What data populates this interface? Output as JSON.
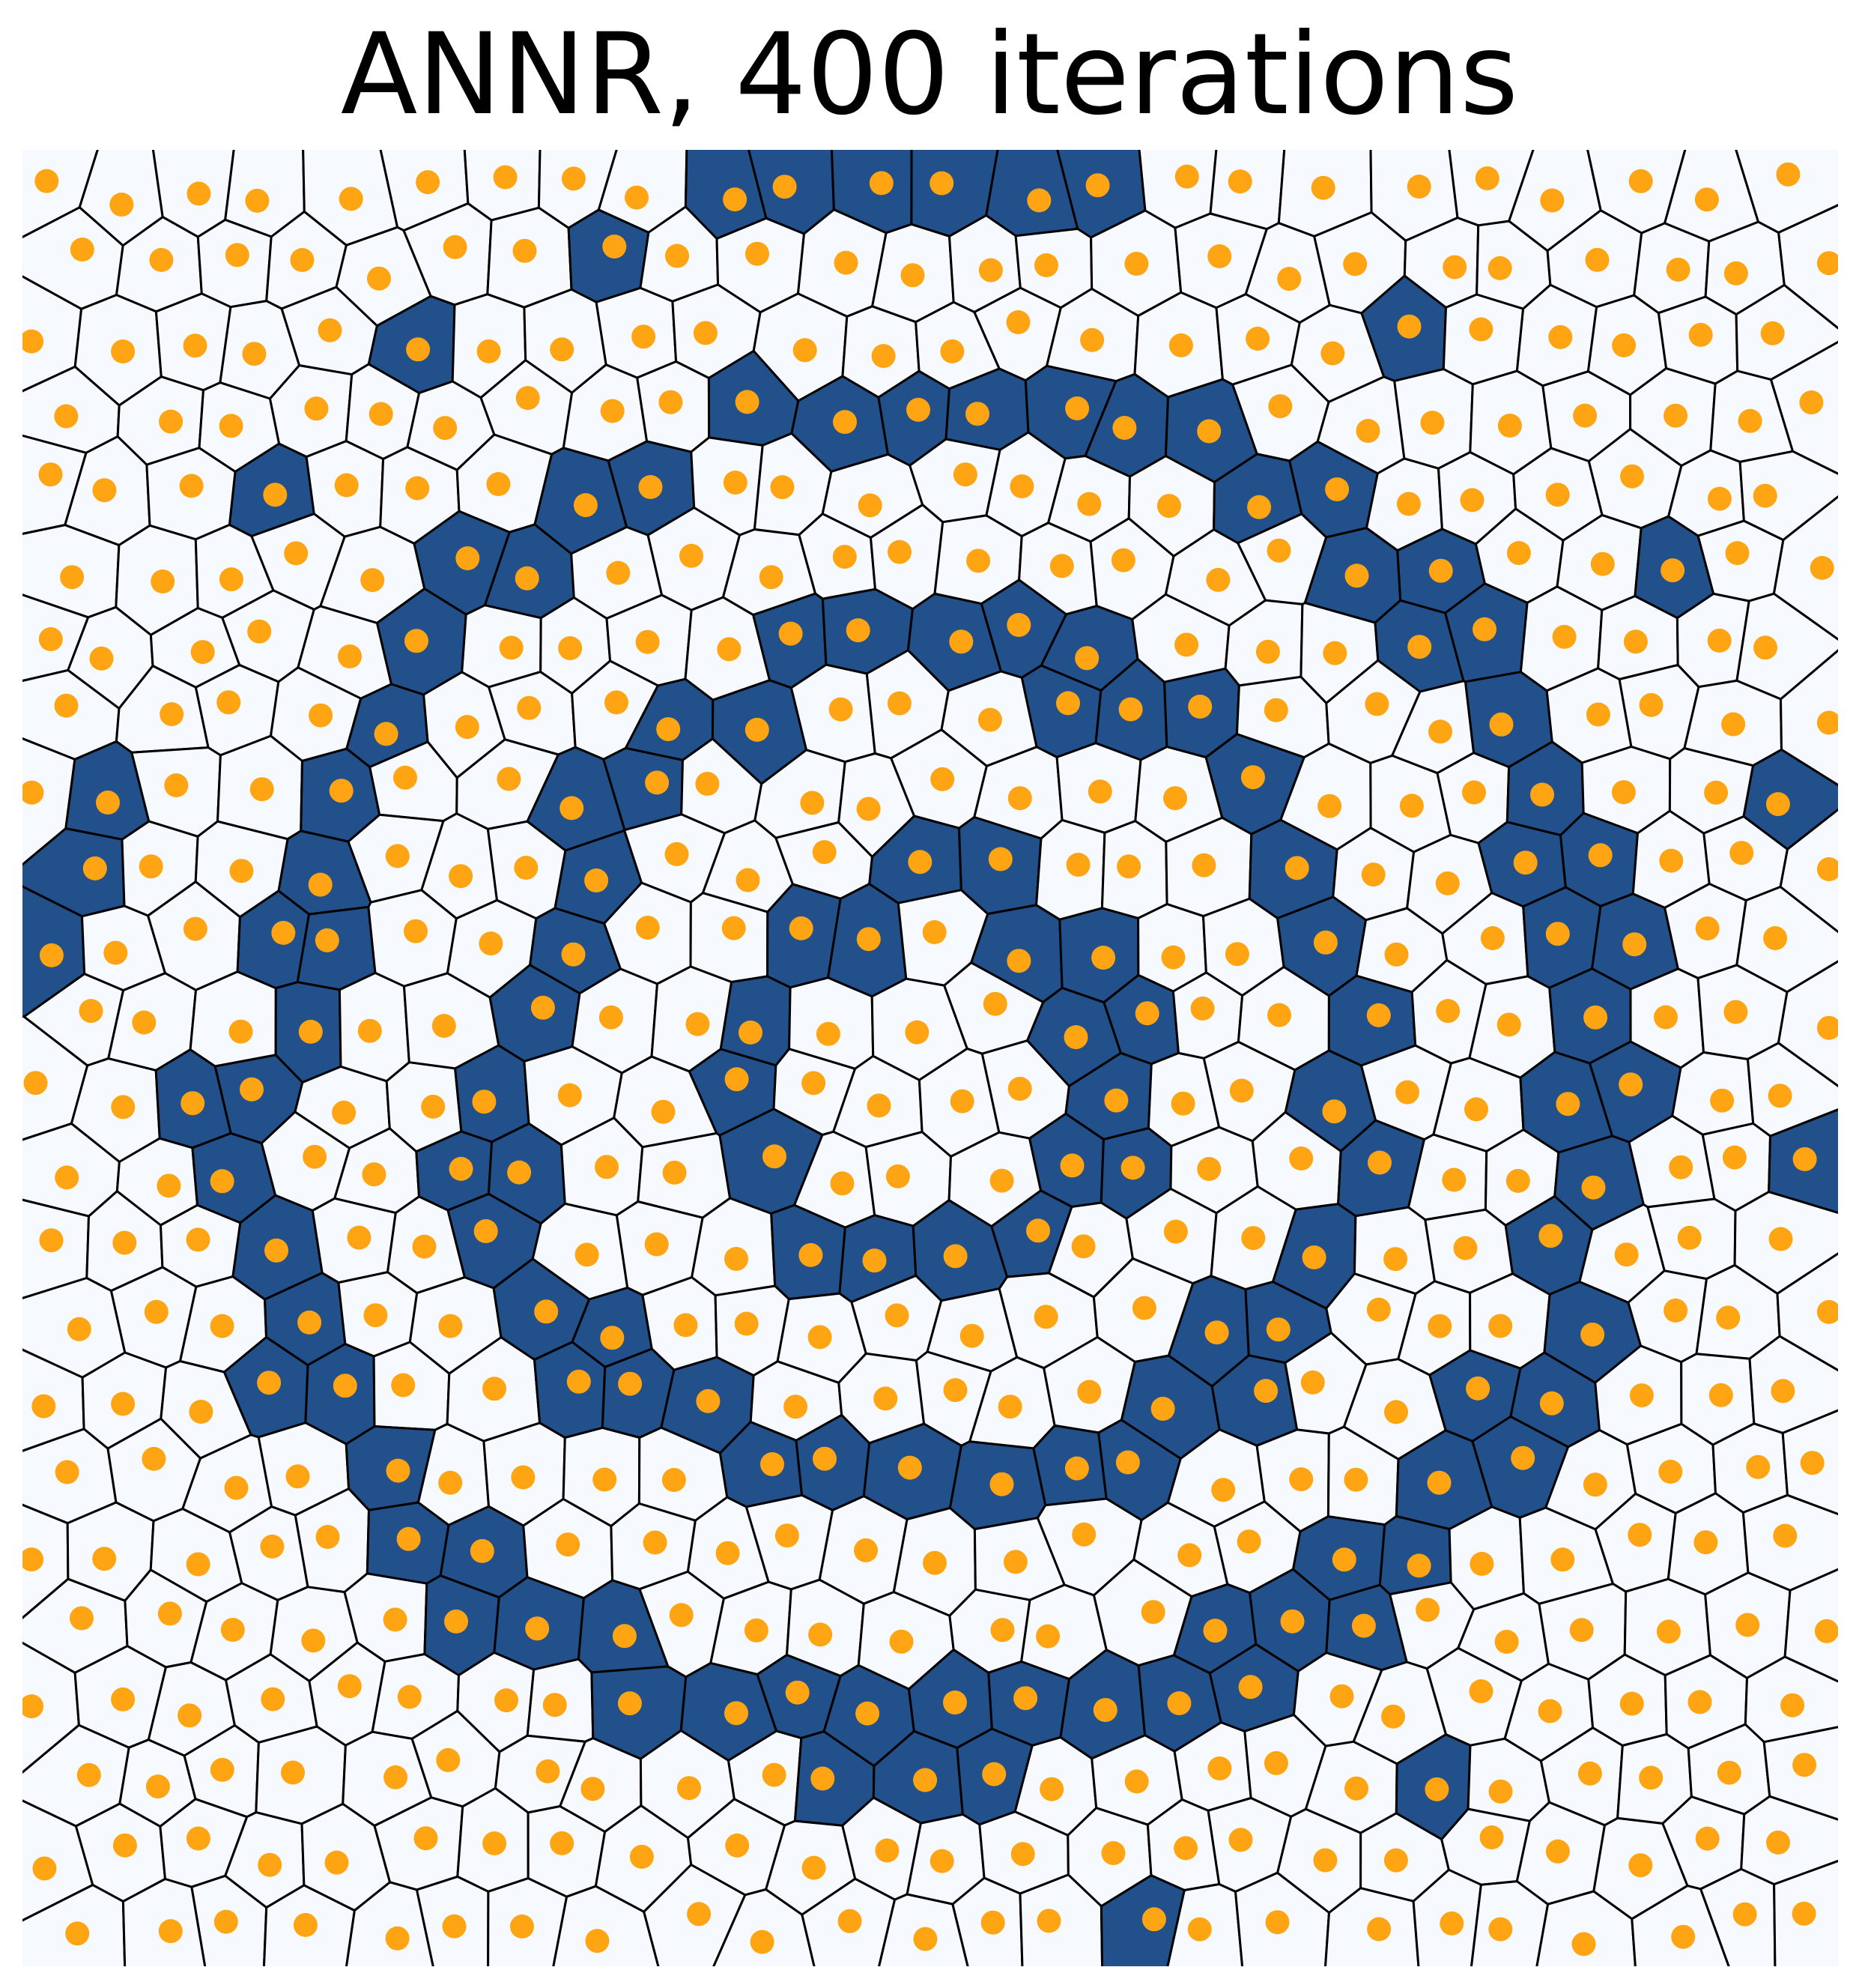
{
  "title": "ANNR, 400 iterations",
  "colors": {
    "background": "#ffffff",
    "cell_fill": "#f6fafe",
    "cell_highlight": "#22508a",
    "cell_edge": "#000000",
    "site": "#ffa412"
  },
  "chart_data": {
    "type": "voronoi",
    "xlim": [
      0,
      1
    ],
    "ylim": [
      0,
      1
    ],
    "highlight_shape": "double spiral band",
    "sites_per_row": 24,
    "rows": 24
  }
}
